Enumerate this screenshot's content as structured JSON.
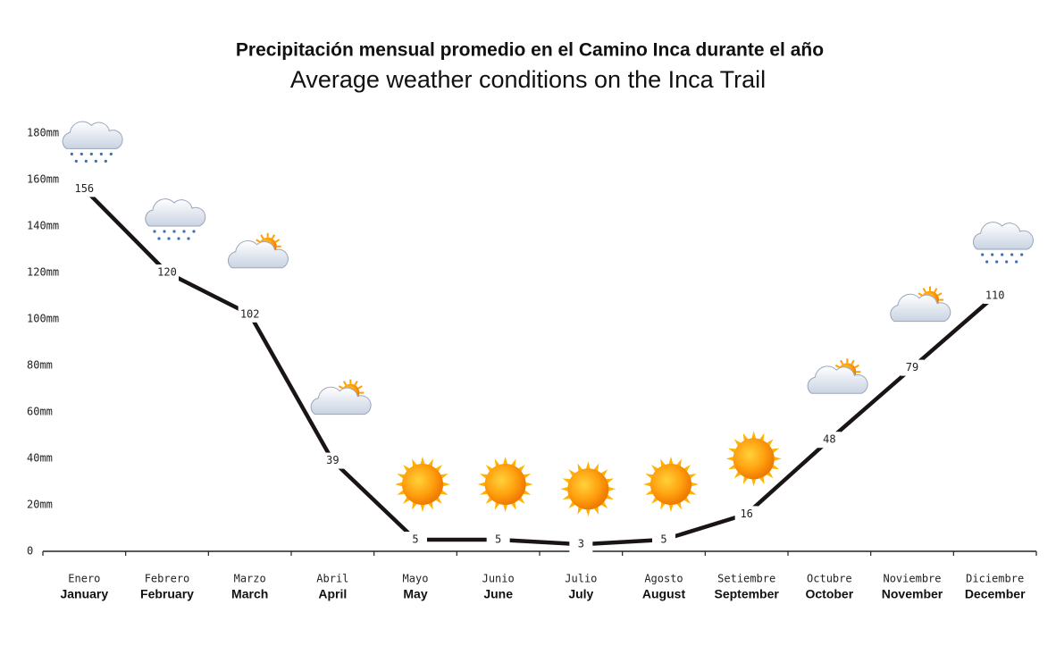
{
  "chart_data": {
    "type": "line",
    "title": "Precipitación mensual promedio en el Camino Inca durante el año",
    "subtitle": "Average weather conditions on the Inca Trail",
    "categories": [
      "Enero",
      "Febrero",
      "Marzo",
      "Abril",
      "Mayo",
      "Junio",
      "Julio",
      "Agosto",
      "Setiembre",
      "Octubre",
      "Noviembre",
      "Diciembre"
    ],
    "categories_en": [
      "January",
      "February",
      "March",
      "April",
      "May",
      "June",
      "July",
      "August",
      "September",
      "October",
      "November",
      "December"
    ],
    "values": [
      156,
      120,
      102,
      39,
      5,
      5,
      3,
      5,
      16,
      48,
      79,
      110
    ],
    "color": "#1a1416",
    "ylim": [
      0,
      180
    ],
    "yticks": [
      0,
      {
        "value": 20,
        "label": "20mm"
      },
      {
        "value": 40,
        "label": "40mm"
      },
      {
        "value": 60,
        "label": "60mm"
      },
      {
        "value": 80,
        "label": "80mm"
      },
      {
        "value": 100,
        "label": "100mm"
      },
      {
        "value": 120,
        "label": "120mm"
      },
      {
        "value": 140,
        "label": "140mm"
      },
      {
        "value": 160,
        "label": "160mm"
      },
      {
        "value": 180,
        "label": "180mm"
      }
    ]
  }
}
